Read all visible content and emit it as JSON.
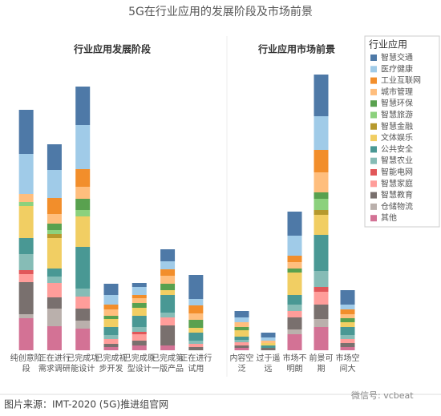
{
  "title": "5G在行业应用的发展阶段及市场前景",
  "source": "图片来源：IMT-2020 (5G)推进组官网",
  "watermark": "微信号: vcbeat",
  "chart_data": [
    {
      "type": "bar",
      "stacked": true,
      "title": "行业应用发展阶段",
      "ylim": [
        0,
        350
      ],
      "categories": [
        "纯创意阶段",
        "正在进行需求调研",
        "已完成功能设计",
        "已完成初步开发",
        "已完成原型设计",
        "已完成第一版产品",
        "正在进行试用"
      ],
      "series": [
        {
          "name": "智慧交通",
          "color": "#4e79a7",
          "values": [
            55,
            32,
            48,
            14,
            5,
            15,
            30
          ]
        },
        {
          "name": "医疗健康",
          "color": "#a0cbe8",
          "values": [
            50,
            35,
            55,
            12,
            10,
            10,
            8
          ]
        },
        {
          "name": "工业互联网",
          "color": "#f28e2b",
          "values": [
            0,
            20,
            22,
            6,
            4,
            8,
            10
          ]
        },
        {
          "name": "城市管理",
          "color": "#ffbe7d",
          "values": [
            10,
            12,
            15,
            8,
            6,
            10,
            8
          ]
        },
        {
          "name": "智慧环保",
          "color": "#59a14f",
          "values": [
            0,
            8,
            14,
            4,
            6,
            8,
            10
          ]
        },
        {
          "name": "智慧旅游",
          "color": "#8cd17d",
          "values": [
            5,
            5,
            8,
            0,
            0,
            0,
            0
          ]
        },
        {
          "name": "智慧金融",
          "color": "#b6992d",
          "values": [
            0,
            5,
            0,
            0,
            0,
            0,
            0
          ]
        },
        {
          "name": "文体娱乐",
          "color": "#f1ce63",
          "values": [
            40,
            38,
            38,
            10,
            10,
            6,
            6
          ]
        },
        {
          "name": "公共安全",
          "color": "#499894",
          "values": [
            20,
            10,
            52,
            10,
            14,
            22,
            10
          ]
        },
        {
          "name": "智慧农业",
          "color": "#86bcb6",
          "values": [
            20,
            8,
            10,
            5,
            6,
            6,
            4
          ]
        },
        {
          "name": "智能电网",
          "color": "#e15759",
          "values": [
            5,
            0,
            0,
            0,
            3,
            0,
            0
          ]
        },
        {
          "name": "智慧家庭",
          "color": "#ff9d9a",
          "values": [
            10,
            18,
            15,
            6,
            8,
            10,
            4
          ]
        },
        {
          "name": "智慧教育",
          "color": "#79706e",
          "values": [
            40,
            14,
            15,
            4,
            6,
            25,
            4
          ]
        },
        {
          "name": "仓储物流",
          "color": "#bab0ac",
          "values": [
            5,
            22,
            10,
            0,
            0,
            0,
            0
          ]
        },
        {
          "name": "其他",
          "color": "#d37295",
          "values": [
            40,
            30,
            27,
            4,
            6,
            6,
            0
          ]
        }
      ]
    },
    {
      "type": "bar",
      "stacked": true,
      "title": "行业应用市场前景",
      "ylim": [
        0,
        350
      ],
      "legend_title": "行业应用",
      "categories": [
        "内容空泛",
        "过于遥远",
        "市场不明朗",
        "前景可期",
        "市场空间大"
      ],
      "series": [
        {
          "name": "智慧交通",
          "color": "#4e79a7",
          "values": [
            8,
            6,
            30,
            52,
            18
          ]
        },
        {
          "name": "医疗健康",
          "color": "#a0cbe8",
          "values": [
            6,
            4,
            25,
            42,
            6
          ]
        },
        {
          "name": "工业互联网",
          "color": "#f28e2b",
          "values": [
            0,
            0,
            8,
            28,
            6
          ]
        },
        {
          "name": "城市管理",
          "color": "#ffbe7d",
          "values": [
            6,
            3,
            8,
            25,
            5
          ]
        },
        {
          "name": "智慧环保",
          "color": "#59a14f",
          "values": [
            4,
            0,
            5,
            8,
            5
          ]
        },
        {
          "name": "智慧旅游",
          "color": "#8cd17d",
          "values": [
            0,
            0,
            0,
            14,
            0
          ]
        },
        {
          "name": "智慧金融",
          "color": "#b6992d",
          "values": [
            0,
            0,
            0,
            6,
            0
          ]
        },
        {
          "name": "文体娱乐",
          "color": "#f1ce63",
          "values": [
            8,
            3,
            28,
            25,
            6
          ]
        },
        {
          "name": "公共安全",
          "color": "#499894",
          "values": [
            4,
            3,
            12,
            45,
            10
          ]
        },
        {
          "name": "智慧农业",
          "color": "#86bcb6",
          "values": [
            3,
            0,
            8,
            20,
            5
          ]
        },
        {
          "name": "智能电网",
          "color": "#e15759",
          "values": [
            0,
            0,
            0,
            6,
            0
          ]
        },
        {
          "name": "智慧家庭",
          "color": "#ff9d9a",
          "values": [
            4,
            0,
            8,
            16,
            5
          ]
        },
        {
          "name": "智慧教育",
          "color": "#79706e",
          "values": [
            3,
            3,
            15,
            18,
            5
          ]
        },
        {
          "name": "仓储物流",
          "color": "#bab0ac",
          "values": [
            0,
            0,
            6,
            10,
            0
          ]
        },
        {
          "name": "其他",
          "color": "#d37295",
          "values": [
            3,
            0,
            20,
            29,
            4
          ]
        }
      ]
    }
  ]
}
